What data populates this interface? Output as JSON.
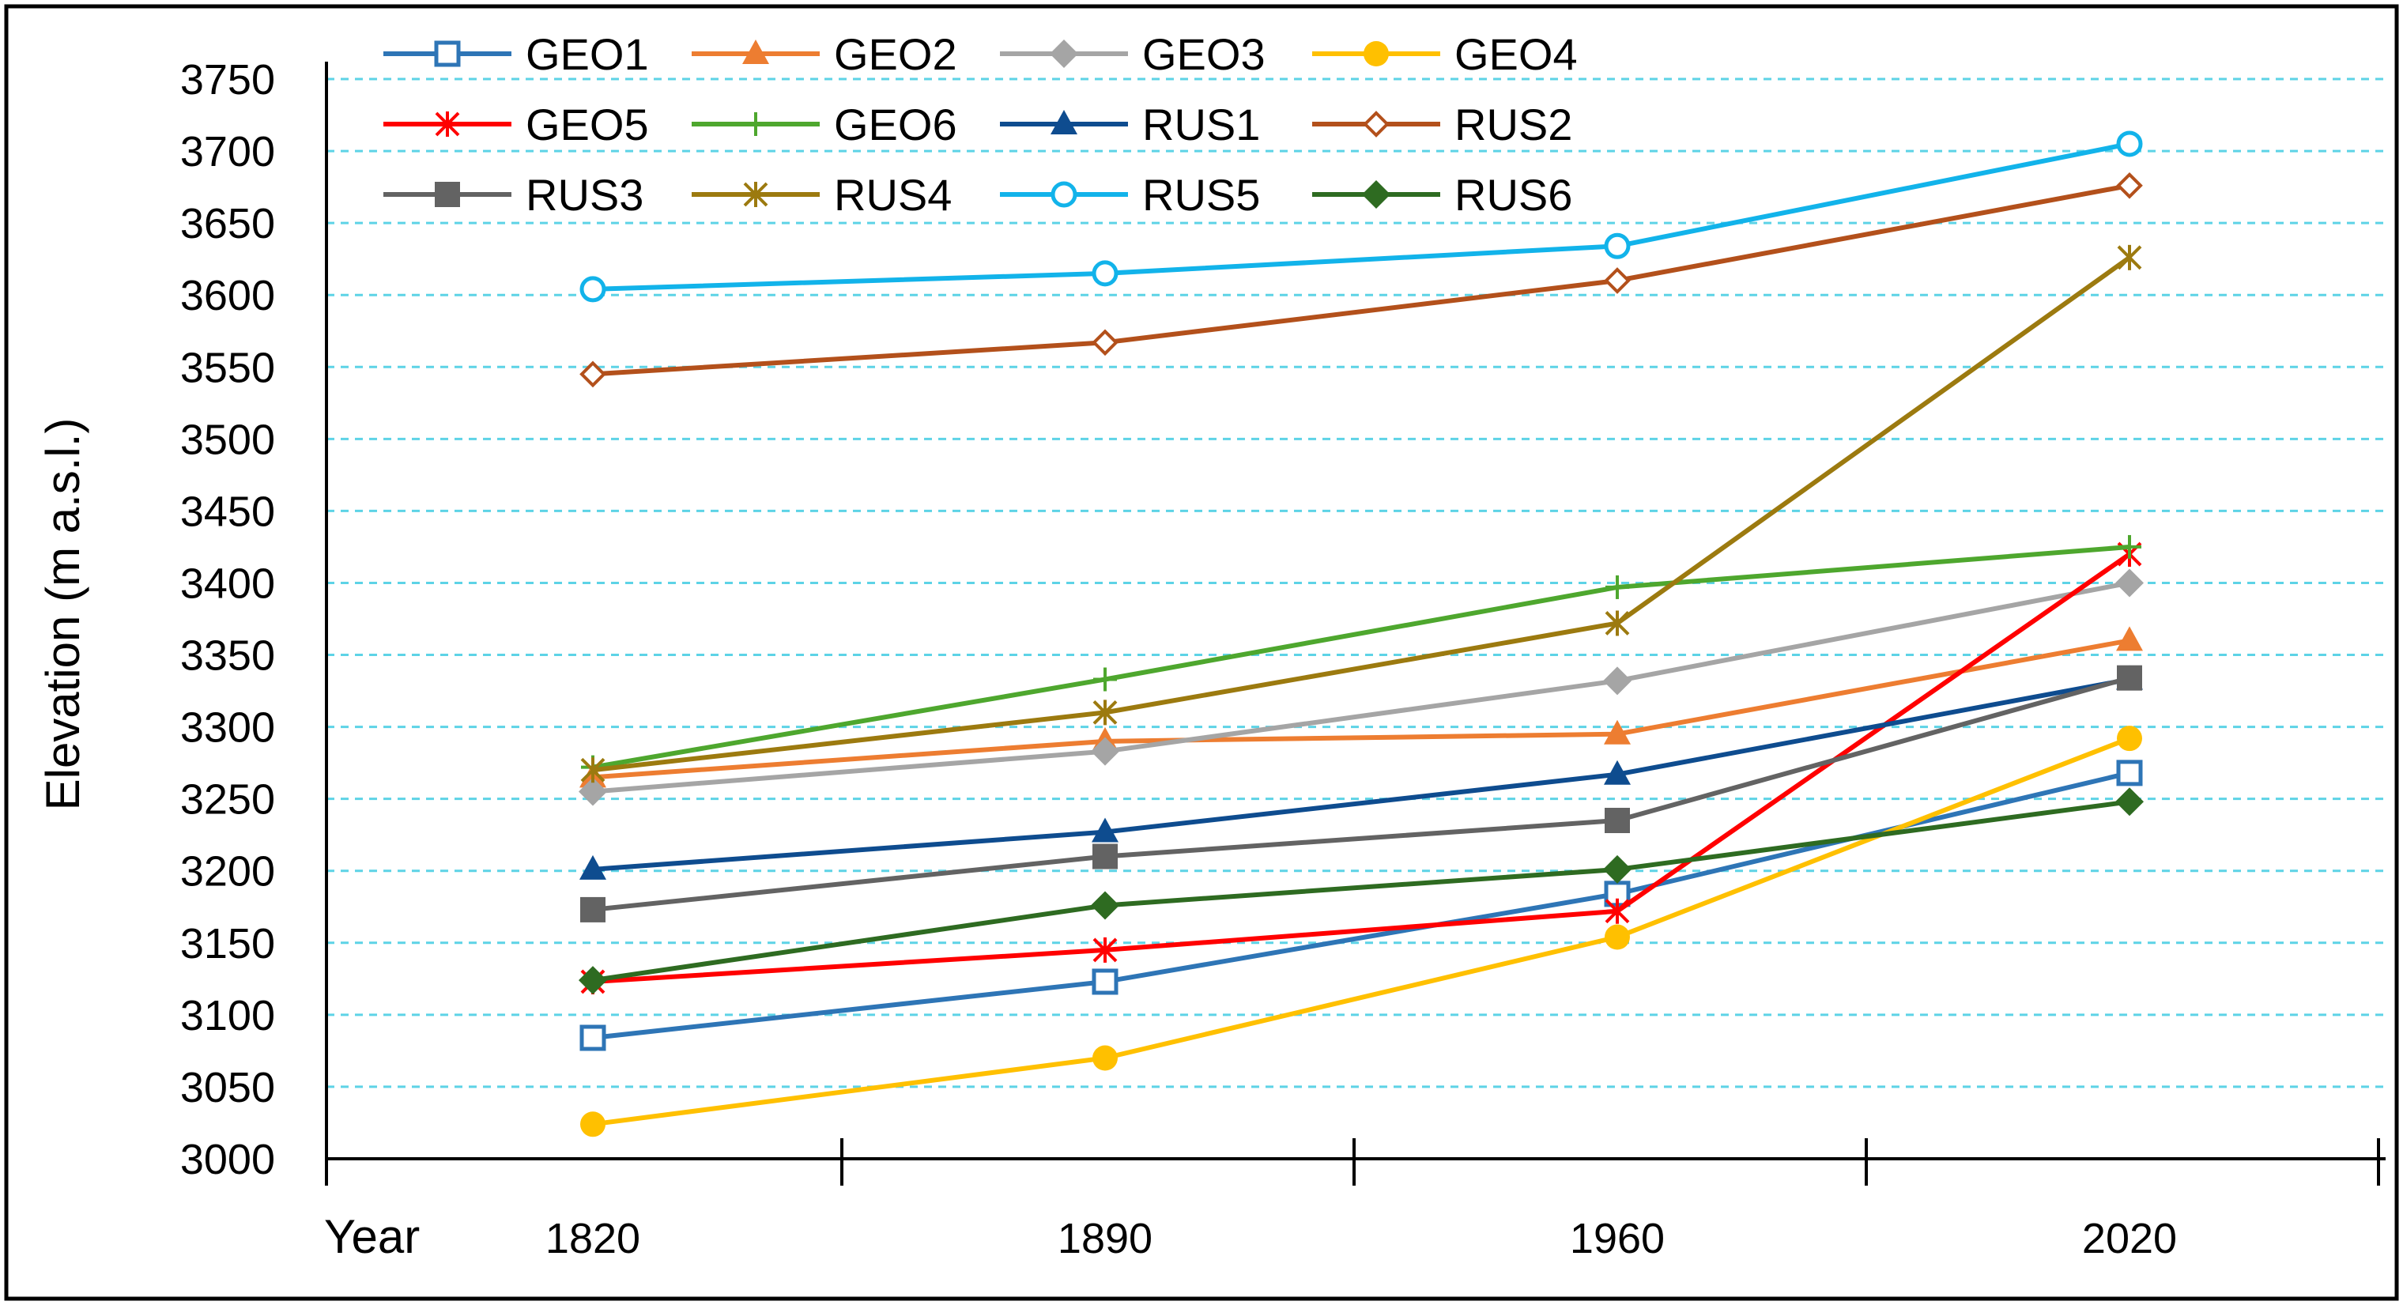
{
  "chart_data": {
    "type": "line",
    "title": "",
    "xlabel": "Year",
    "ylabel": "Elevation (m a.s.l.)",
    "categories": [
      "1820",
      "1890",
      "1960",
      "2020"
    ],
    "ylim": [
      3000,
      3750
    ],
    "y_ticks": [
      3000,
      3050,
      3100,
      3150,
      3200,
      3250,
      3300,
      3350,
      3400,
      3450,
      3500,
      3550,
      3600,
      3650,
      3700,
      3750
    ],
    "grid": "horizontal dashed",
    "legend_position": "top",
    "series": [
      {
        "name": "GEO1",
        "color": "#2E75B6",
        "marker": "square-open",
        "values": [
          3084,
          3123,
          3184,
          3268
        ]
      },
      {
        "name": "GEO2",
        "color": "#ED7D31",
        "marker": "triangle",
        "values": [
          3265,
          3290,
          3295,
          3360
        ]
      },
      {
        "name": "GEO3",
        "color": "#A5A5A5",
        "marker": "diamond",
        "values": [
          3255,
          3283,
          3332,
          3400
        ]
      },
      {
        "name": "GEO4",
        "color": "#FFC000",
        "marker": "circle",
        "values": [
          3024,
          3070,
          3154,
          3292
        ]
      },
      {
        "name": "GEO5",
        "color": "#FF0000",
        "marker": "asterisk",
        "values": [
          3123,
          3145,
          3172,
          3420
        ]
      },
      {
        "name": "GEO6",
        "color": "#4EA72E",
        "marker": "plus",
        "values": [
          3272,
          3333,
          3397,
          3425
        ]
      },
      {
        "name": "RUS1",
        "color": "#0E4C8F",
        "marker": "triangle",
        "values": [
          3201,
          3227,
          3267,
          3333
        ]
      },
      {
        "name": "RUS2",
        "color": "#B3501B",
        "marker": "diamond-open",
        "values": [
          3545,
          3567,
          3610,
          3676
        ]
      },
      {
        "name": "RUS3",
        "color": "#636363",
        "marker": "square",
        "values": [
          3173,
          3210,
          3235,
          3334
        ]
      },
      {
        "name": "RUS4",
        "color": "#9C7A0F",
        "marker": "asterisk",
        "values": [
          3270,
          3310,
          3372,
          3626
        ]
      },
      {
        "name": "RUS5",
        "color": "#12B3EA",
        "marker": "circle-open",
        "values": [
          3604,
          3615,
          3634,
          3705
        ]
      },
      {
        "name": "RUS6",
        "color": "#2E6B21",
        "marker": "diamond",
        "values": [
          3124,
          3176,
          3201,
          3248
        ]
      }
    ]
  }
}
